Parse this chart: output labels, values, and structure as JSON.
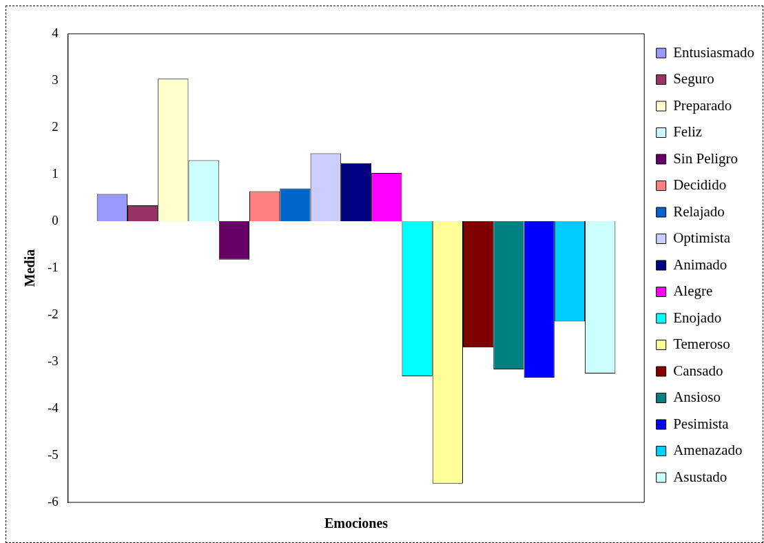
{
  "chart_data": {
    "type": "bar",
    "xlabel": "Emociones",
    "ylabel": "Media",
    "categories": [
      null
    ],
    "ylim": [
      -6,
      4
    ],
    "yticks": [
      -6,
      -5,
      -4,
      -3,
      -2,
      -1,
      0,
      1,
      2,
      3,
      4
    ],
    "grid": false,
    "legend": "right",
    "series": [
      {
        "name": "Entusiasmado",
        "color": "#9999ff",
        "values": [
          0.58
        ]
      },
      {
        "name": "Seguro",
        "color": "#993366",
        "values": [
          0.34
        ]
      },
      {
        "name": "Preparado",
        "color": "#ffffcc",
        "values": [
          3.04
        ]
      },
      {
        "name": "Feliz",
        "color": "#ccffff",
        "values": [
          1.3
        ]
      },
      {
        "name": "Sin Peligro",
        "color": "#660066",
        "values": [
          -0.82
        ]
      },
      {
        "name": "Decidido",
        "color": "#ff8080",
        "values": [
          0.64
        ]
      },
      {
        "name": "Relajado",
        "color": "#0066cc",
        "values": [
          0.7
        ]
      },
      {
        "name": "Optimista",
        "color": "#ccccff",
        "values": [
          1.45
        ]
      },
      {
        "name": "Animado",
        "color": "#000080",
        "values": [
          1.24
        ]
      },
      {
        "name": "Alegre",
        "color": "#ff00ff",
        "values": [
          1.03
        ]
      },
      {
        "name": "Enojado",
        "color": "#00ffff",
        "values": [
          -3.31
        ]
      },
      {
        "name": "Temeroso",
        "color": "#ffff99",
        "values": [
          -5.6
        ]
      },
      {
        "name": "Cansado",
        "color": "#800000",
        "values": [
          -2.69
        ]
      },
      {
        "name": "Ansioso",
        "color": "#008080",
        "values": [
          -3.16
        ]
      },
      {
        "name": "Pesimista",
        "color": "#0000ff",
        "values": [
          -3.34
        ]
      },
      {
        "name": "Amenazado",
        "color": "#00ccff",
        "values": [
          -2.14
        ]
      },
      {
        "name": "Asustado",
        "color": "#ccffff",
        "values": [
          -3.25
        ]
      }
    ]
  }
}
